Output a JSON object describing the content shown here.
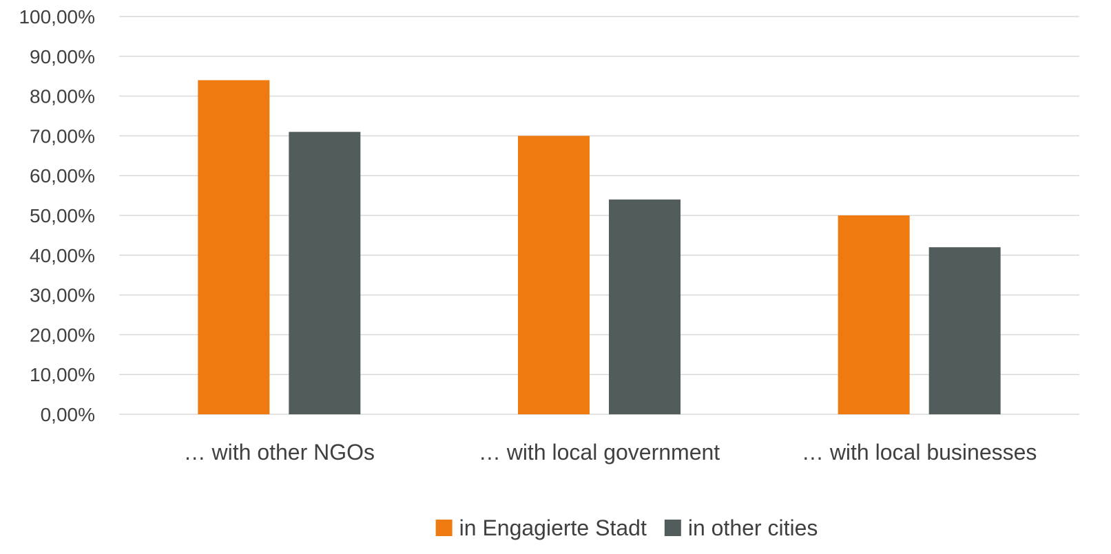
{
  "chart_data": {
    "type": "bar",
    "categories": [
      "… with other NGOs",
      "… with local government",
      "… with local businesses"
    ],
    "series": [
      {
        "name": "in Engagierte Stadt",
        "color": "#ef7b10",
        "values": [
          84,
          70,
          50
        ]
      },
      {
        "name": "in other cities",
        "color": "#525c5c",
        "values": [
          71,
          54,
          42
        ]
      }
    ],
    "ylim": [
      0,
      100
    ],
    "yticks": [
      0,
      10,
      20,
      30,
      40,
      50,
      60,
      70,
      80,
      90,
      100
    ],
    "ytick_labels": [
      "0,00%",
      "10,00%",
      "20,00%",
      "30,00%",
      "40,00%",
      "50,00%",
      "60,00%",
      "70,00%",
      "80,00%",
      "90,00%",
      "100,00%"
    ],
    "grid": true,
    "legend_position": "bottom-center"
  }
}
